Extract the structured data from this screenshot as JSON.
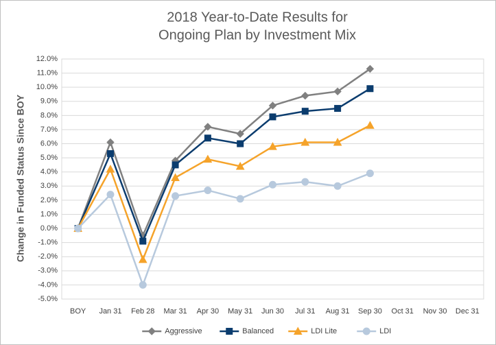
{
  "chart_data": {
    "type": "line",
    "title": [
      "2018 Year-to-Date Results for",
      "Ongoing Plan by Investment Mix"
    ],
    "y_label": "Change in Funded Status Since BOY",
    "categories": [
      "BOY",
      "Jan 31",
      "Feb 28",
      "Mar 31",
      "Apr 30",
      "May 31",
      "Jun 30",
      "Jul 31",
      "Aug 31",
      "Sep 30",
      "Oct 31",
      "Nov 30",
      "Dec 31"
    ],
    "series": [
      {
        "name": "Aggressive",
        "color": "#808080",
        "marker": "diamond",
        "values": [
          0,
          6.1,
          -0.5,
          4.8,
          7.2,
          6.7,
          8.7,
          9.4,
          9.7,
          11.3,
          null,
          null,
          null
        ]
      },
      {
        "name": "Balanced",
        "color": "#0b3c6e",
        "marker": "square",
        "values": [
          0,
          5.3,
          -0.9,
          4.5,
          6.4,
          6.0,
          7.9,
          8.3,
          8.5,
          9.9,
          null,
          null,
          null
        ]
      },
      {
        "name": "LDI Lite",
        "color": "#f5a32a",
        "marker": "triangle",
        "values": [
          0,
          4.2,
          -2.2,
          3.6,
          4.9,
          4.4,
          5.8,
          6.1,
          6.1,
          7.3,
          null,
          null,
          null
        ]
      },
      {
        "name": "LDI",
        "color": "#b7c9dd",
        "marker": "circle",
        "values": [
          0,
          2.4,
          -4.0,
          2.3,
          2.7,
          2.1,
          3.1,
          3.3,
          3.0,
          3.9,
          null,
          null,
          null
        ]
      }
    ],
    "ylim": [
      -5,
      12
    ],
    "yticks": [
      {
        "value": -5,
        "label": "-5.0%"
      },
      {
        "value": -4,
        "label": "-4.0%"
      },
      {
        "value": -3,
        "label": "-3.0%"
      },
      {
        "value": -2,
        "label": "-2.0%"
      },
      {
        "value": -1,
        "label": "-1.0%"
      },
      {
        "value": 0,
        "label": "0.0%"
      },
      {
        "value": 1,
        "label": "1.0%"
      },
      {
        "value": 2,
        "label": "2.0%"
      },
      {
        "value": 3,
        "label": "3.0%"
      },
      {
        "value": 4,
        "label": "4.0%"
      },
      {
        "value": 5,
        "label": "5.0%"
      },
      {
        "value": 6,
        "label": "6.0%"
      },
      {
        "value": 7,
        "label": "7.0%"
      },
      {
        "value": 8,
        "label": "8.0%"
      },
      {
        "value": 9,
        "label": "9.0%"
      },
      {
        "value": 10,
        "label": "10.0%"
      },
      {
        "value": 11,
        "label": "11.0%"
      },
      {
        "value": 12,
        "label": "12.0%"
      }
    ],
    "grid": true,
    "legend": "bottom"
  }
}
